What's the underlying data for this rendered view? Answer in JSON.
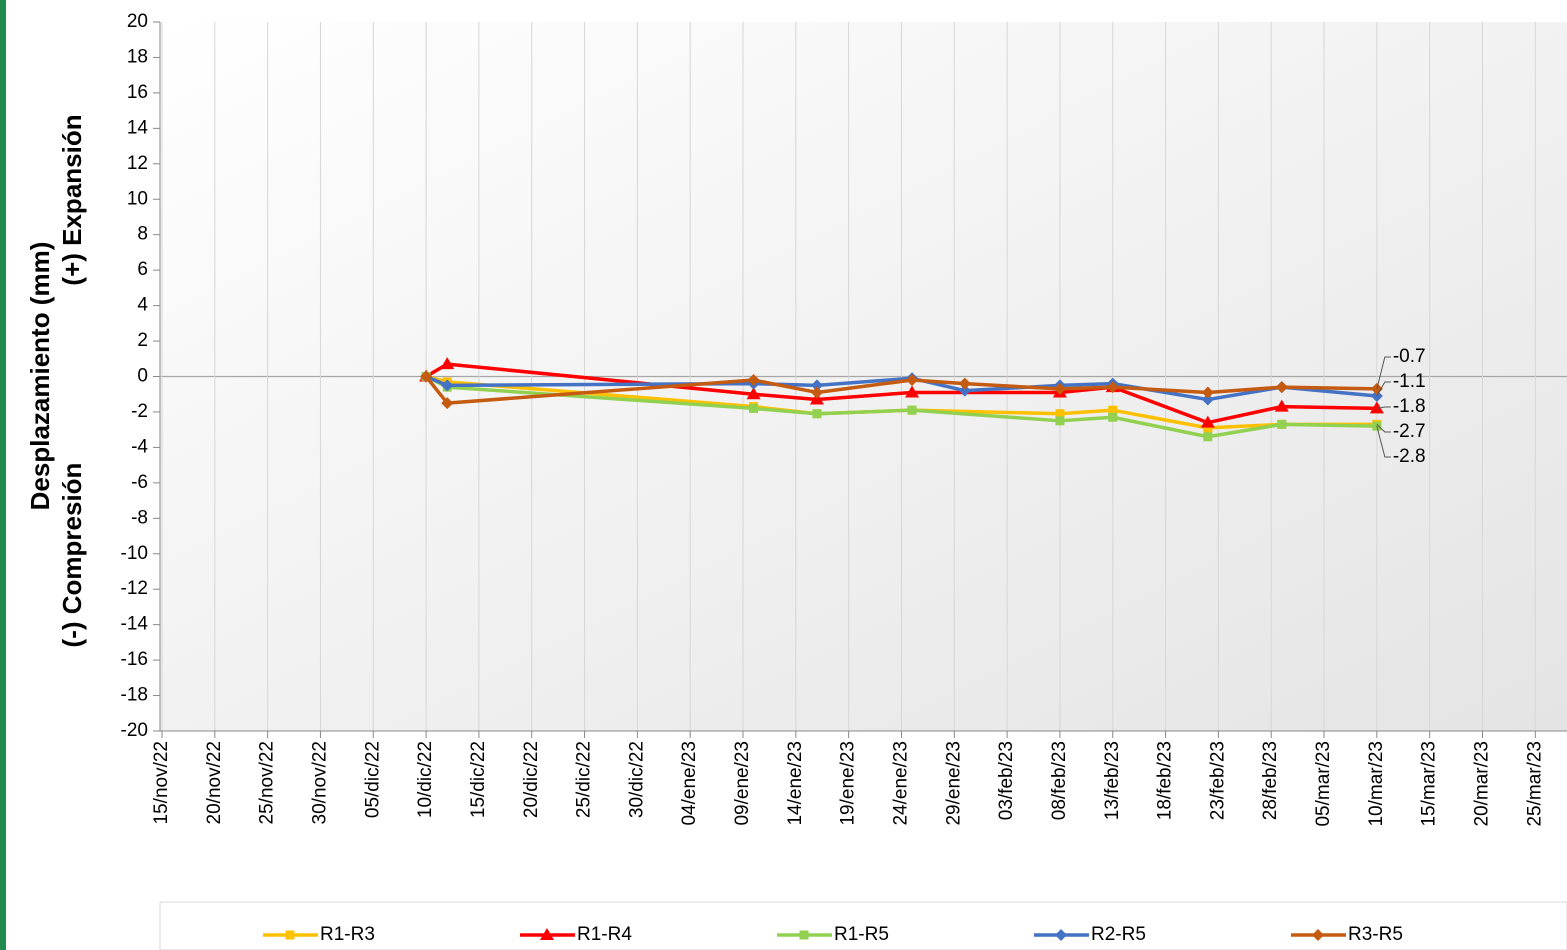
{
  "chart_data": {
    "type": "line",
    "ylabel": "Desplazamiento (mm)",
    "ylabel_negative": "(-) Compresión",
    "ylabel_positive": "(+) Expansión",
    "ylim": [
      -20,
      20
    ],
    "yticks": [
      -20,
      -18,
      -16,
      -14,
      -12,
      -10,
      -8,
      -6,
      -4,
      -2,
      0,
      2,
      4,
      6,
      8,
      10,
      12,
      14,
      16,
      18,
      20
    ],
    "xlim": [
      "2022-11-15",
      "2023-03-28"
    ],
    "xticks": [
      {
        "value": "2022-11-15",
        "label": "15/nov/22"
      },
      {
        "value": "2022-11-20",
        "label": "20/nov/22"
      },
      {
        "value": "2022-11-25",
        "label": "25/nov/22"
      },
      {
        "value": "2022-11-30",
        "label": "30/nov/22"
      },
      {
        "value": "2022-12-05",
        "label": "05/dic/22"
      },
      {
        "value": "2022-12-10",
        "label": "10/dic/22"
      },
      {
        "value": "2022-12-15",
        "label": "15/dic/22"
      },
      {
        "value": "2022-12-20",
        "label": "20/dic/22"
      },
      {
        "value": "2022-12-25",
        "label": "25/dic/22"
      },
      {
        "value": "2022-12-30",
        "label": "30/dic/22"
      },
      {
        "value": "2023-01-04",
        "label": "04/ene/23"
      },
      {
        "value": "2023-01-09",
        "label": "09/ene/23"
      },
      {
        "value": "2023-01-14",
        "label": "14/ene/23"
      },
      {
        "value": "2023-01-19",
        "label": "19/ene/23"
      },
      {
        "value": "2023-01-24",
        "label": "24/ene/23"
      },
      {
        "value": "2023-01-29",
        "label": "29/ene/23"
      },
      {
        "value": "2023-02-03",
        "label": "03/feb/23"
      },
      {
        "value": "2023-02-08",
        "label": "08/feb/23"
      },
      {
        "value": "2023-02-13",
        "label": "13/feb/23"
      },
      {
        "value": "2023-02-18",
        "label": "18/feb/23"
      },
      {
        "value": "2023-02-23",
        "label": "23/feb/23"
      },
      {
        "value": "2023-02-28",
        "label": "28/feb/23"
      },
      {
        "value": "2023-03-05",
        "label": "05/mar/23"
      },
      {
        "value": "2023-03-10",
        "label": "10/mar/23"
      },
      {
        "value": "2023-03-15",
        "label": "15/mar/23"
      },
      {
        "value": "2023-03-20",
        "label": "20/mar/23"
      },
      {
        "value": "2023-03-25",
        "label": "25/mar/23"
      }
    ],
    "grid": true,
    "legend": "bottom",
    "series": [
      {
        "name": "R1-R3",
        "color": "#ffc000",
        "marker": "square",
        "x": [
          "2022-12-10",
          "2022-12-12",
          "2023-01-10",
          "2023-01-16",
          "2023-01-25",
          "2023-02-08",
          "2023-02-13",
          "2023-02-22",
          "2023-03-01",
          "2023-03-10"
        ],
        "values": [
          0,
          -0.3,
          -1.7,
          -2.1,
          -1.9,
          -2.1,
          -1.9,
          -2.9,
          -2.7,
          -2.7
        ]
      },
      {
        "name": "R1-R4",
        "color": "#ff0000",
        "marker": "triangle",
        "x": [
          "2022-12-10",
          "2022-12-12",
          "2023-01-10",
          "2023-01-16",
          "2023-01-25",
          "2023-02-08",
          "2023-02-13",
          "2023-02-22",
          "2023-03-01",
          "2023-03-10"
        ],
        "values": [
          0,
          0.7,
          -1.0,
          -1.3,
          -0.9,
          -0.9,
          -0.6,
          -2.6,
          -1.7,
          -1.8
        ]
      },
      {
        "name": "R1-R5",
        "color": "#92d050",
        "marker": "square",
        "x": [
          "2022-12-10",
          "2022-12-12",
          "2023-01-10",
          "2023-01-16",
          "2023-01-25",
          "2023-02-08",
          "2023-02-13",
          "2023-02-22",
          "2023-03-01",
          "2023-03-10"
        ],
        "values": [
          0,
          -0.6,
          -1.8,
          -2.1,
          -1.9,
          -2.5,
          -2.3,
          -3.4,
          -2.7,
          -2.8
        ]
      },
      {
        "name": "R2-R5",
        "color": "#4472c4",
        "marker": "diamond",
        "x": [
          "2022-12-10",
          "2022-12-12",
          "2023-01-10",
          "2023-01-16",
          "2023-01-25",
          "2023-01-30",
          "2023-02-08",
          "2023-02-13",
          "2023-02-22",
          "2023-03-01",
          "2023-03-10"
        ],
        "values": [
          0,
          -0.5,
          -0.4,
          -0.5,
          -0.1,
          -0.8,
          -0.5,
          -0.4,
          -1.3,
          -0.6,
          -1.1
        ]
      },
      {
        "name": "R3-R5",
        "color": "#c55a11",
        "marker": "diamond",
        "x": [
          "2022-12-10",
          "2022-12-12",
          "2023-01-10",
          "2023-01-16",
          "2023-01-25",
          "2023-01-30",
          "2023-02-08",
          "2023-02-13",
          "2023-02-22",
          "2023-03-01",
          "2023-03-10"
        ],
        "values": [
          0,
          -1.5,
          -0.2,
          -0.9,
          -0.2,
          -0.4,
          -0.7,
          -0.6,
          -0.9,
          -0.6,
          -0.7
        ]
      }
    ]
  }
}
